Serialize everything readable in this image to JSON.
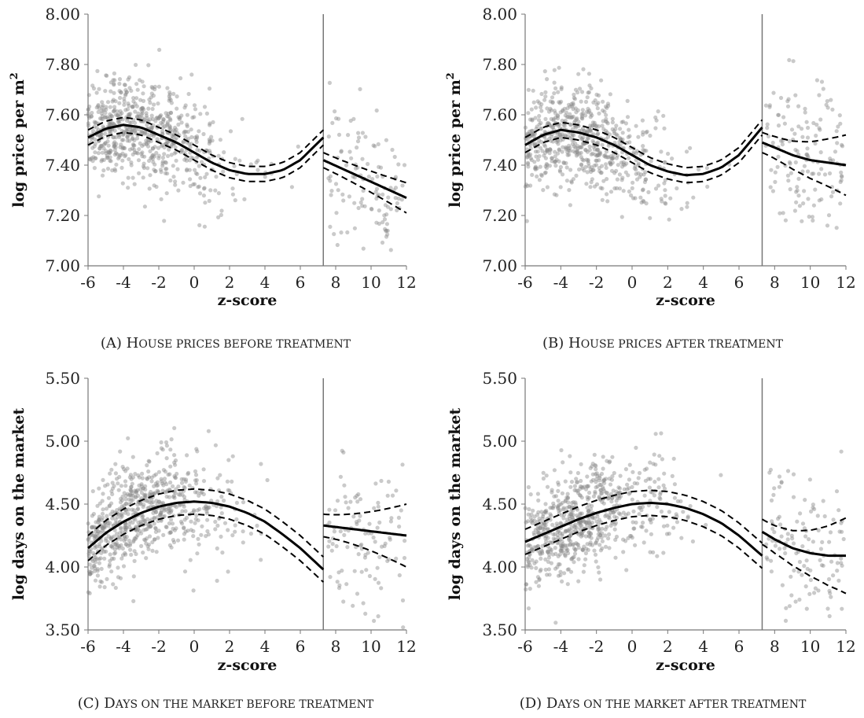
{
  "chart_data": [
    {
      "type": "scatter",
      "panel": "A",
      "caption_prefix": "(A) ",
      "caption_first": "H",
      "caption_rest": "OUSE PRICES BEFORE TREATMENT",
      "xlabel": "z-score",
      "ylabel": "log price per m",
      "ylabel_sup": "2",
      "xlim": [
        -6,
        12
      ],
      "ylim": [
        7.0,
        8.0
      ],
      "xticks": [
        "-6",
        "-4",
        "-2",
        "0",
        "2",
        "4",
        "6",
        "8",
        "10",
        "12"
      ],
      "yticks": [
        "7.00",
        "7.20",
        "7.40",
        "7.60",
        "7.80",
        "8.00"
      ],
      "cutoff": 7.3,
      "left_fit": {
        "x": [
          -6,
          -5,
          -4,
          -3,
          -2,
          -1,
          0,
          1,
          2,
          3,
          4,
          5,
          6,
          7.3
        ],
        "y": [
          7.51,
          7.545,
          7.56,
          7.55,
          7.52,
          7.49,
          7.45,
          7.41,
          7.38,
          7.365,
          7.365,
          7.38,
          7.42,
          7.51
        ],
        "band": 0.03
      },
      "right_fit": {
        "x": [
          7.3,
          12
        ],
        "y": [
          7.42,
          7.27
        ],
        "band_start": 0.03,
        "band_end": 0.06
      }
    },
    {
      "type": "scatter",
      "panel": "B",
      "caption_prefix": "(B) ",
      "caption_first": "H",
      "caption_rest": "OUSE PRICES AFTER TREATMENT",
      "xlabel": "z-score",
      "ylabel": "log price per m",
      "ylabel_sup": "2",
      "xlim": [
        -6,
        12
      ],
      "ylim": [
        7.0,
        8.0
      ],
      "xticks": [
        "-6",
        "-4",
        "-2",
        "0",
        "2",
        "4",
        "6",
        "8",
        "10",
        "12"
      ],
      "yticks": [
        "7.00",
        "7.20",
        "7.40",
        "7.60",
        "7.80",
        "8.00"
      ],
      "cutoff": 7.3,
      "left_fit": {
        "x": [
          -6,
          -5,
          -4,
          -3,
          -2,
          -1,
          0,
          1,
          2,
          3,
          4,
          5,
          6,
          7.3
        ],
        "y": [
          7.48,
          7.52,
          7.54,
          7.53,
          7.51,
          7.48,
          7.44,
          7.4,
          7.375,
          7.36,
          7.365,
          7.39,
          7.44,
          7.55
        ],
        "band": 0.03
      },
      "right_fit": {
        "x": [
          7.3,
          8,
          9,
          10,
          11,
          12
        ],
        "y": [
          7.49,
          7.47,
          7.44,
          7.42,
          7.41,
          7.4
        ],
        "band_start": 0.04,
        "band_end": 0.12
      }
    },
    {
      "type": "scatter",
      "panel": "C",
      "caption_prefix": "(C) ",
      "caption_first": "D",
      "caption_rest": "AYS ON THE MARKET  BEFORE TREATMENT",
      "xlabel": "z-score",
      "ylabel": "log days on the market",
      "ylabel_sup": "",
      "xlim": [
        -6,
        12
      ],
      "ylim": [
        3.5,
        5.5
      ],
      "xticks": [
        "-6",
        "-4",
        "-2",
        "0",
        "2",
        "4",
        "6",
        "8",
        "10",
        "12"
      ],
      "yticks": [
        "3.50",
        "4.00",
        "4.50",
        "5.00",
        "5.50"
      ],
      "cutoff": 7.3,
      "left_fit": {
        "x": [
          -6,
          -5,
          -4,
          -3,
          -2,
          -1,
          0,
          1,
          2,
          3,
          4,
          5,
          6,
          7.3
        ],
        "y": [
          4.15,
          4.27,
          4.36,
          4.43,
          4.48,
          4.51,
          4.52,
          4.51,
          4.48,
          4.43,
          4.36,
          4.26,
          4.15,
          3.98
        ],
        "band": 0.1
      },
      "right_fit": {
        "x": [
          7.3,
          12
        ],
        "y": [
          4.33,
          4.25
        ],
        "band_start": 0.09,
        "band_end": 0.25
      }
    },
    {
      "type": "scatter",
      "panel": "D",
      "caption_prefix": "(D) ",
      "caption_first": "D",
      "caption_rest": "AYS ON THE MARKET  AFTER TREATMENT",
      "xlabel": "z-score",
      "ylabel": "log days on the market",
      "ylabel_sup": "",
      "xlim": [
        -6,
        12
      ],
      "ylim": [
        3.5,
        5.5
      ],
      "xticks": [
        "-6",
        "-4",
        "-2",
        "0",
        "2",
        "4",
        "6",
        "8",
        "10",
        "12"
      ],
      "yticks": [
        "3.50",
        "4.00",
        "4.50",
        "5.00",
        "5.50"
      ],
      "cutoff": 7.3,
      "left_fit": {
        "x": [
          -6,
          -5,
          -4,
          -3,
          -2,
          -1,
          0,
          1,
          2,
          3,
          4,
          5,
          6,
          7.3
        ],
        "y": [
          4.2,
          4.26,
          4.32,
          4.38,
          4.43,
          4.47,
          4.5,
          4.51,
          4.5,
          4.47,
          4.42,
          4.35,
          4.25,
          4.09
        ],
        "band": 0.1
      },
      "right_fit": {
        "x": [
          7.3,
          8,
          9,
          10,
          11,
          12
        ],
        "y": [
          4.28,
          4.22,
          4.15,
          4.11,
          4.09,
          4.09
        ],
        "band_start": 0.1,
        "band_end": 0.3
      }
    }
  ]
}
